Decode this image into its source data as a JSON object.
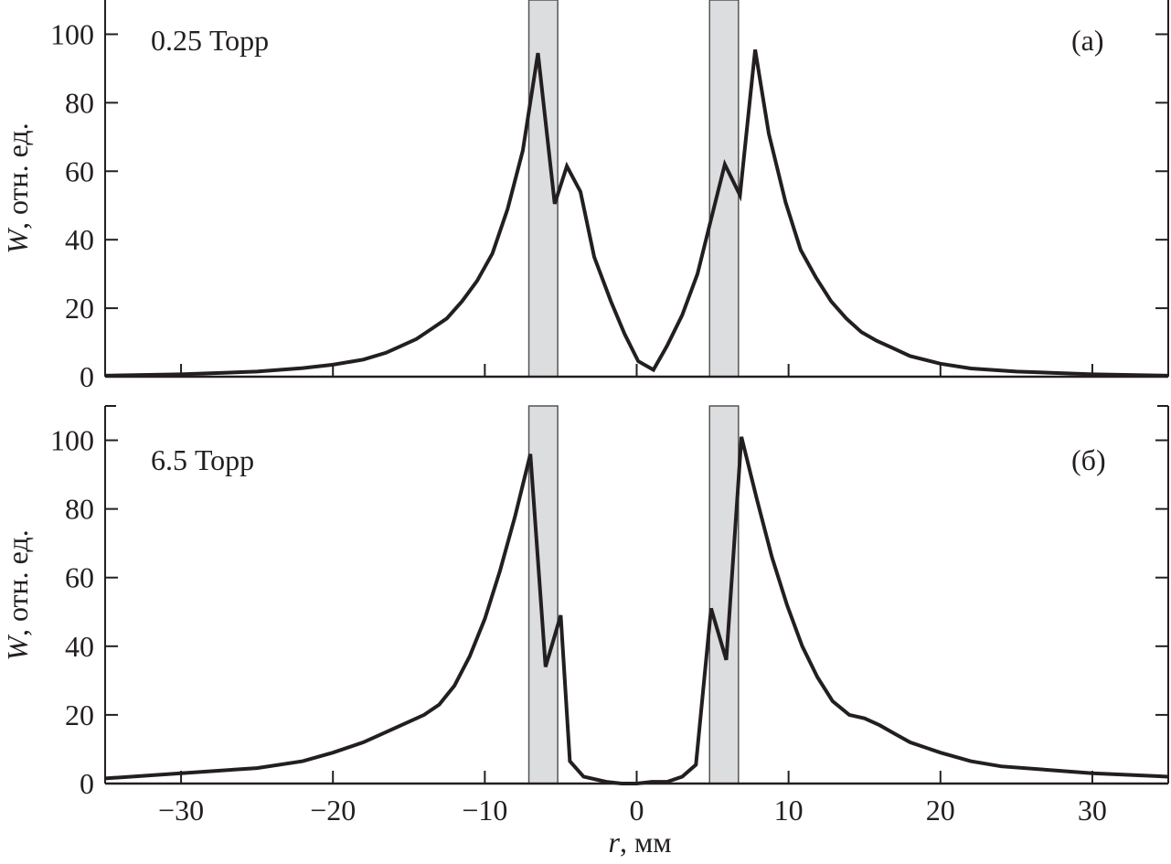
{
  "chart_data": [
    {
      "type": "line",
      "panel_label": "(а)",
      "annotation": "0.25 Торр",
      "ylabel_var": "W",
      "ylabel_rest": ", отн. ед.",
      "xlabel": "",
      "xlim": [
        -35,
        35
      ],
      "ylim": [
        0,
        110
      ],
      "xticks": [
        -30,
        -20,
        -10,
        0,
        10,
        20,
        30
      ],
      "yticks": [
        0,
        20,
        40,
        60,
        80,
        100
      ],
      "shaded_bands": [
        [
          -7.1,
          -5.2
        ],
        [
          4.8,
          6.7
        ]
      ],
      "line_color": "#231f20",
      "band_color": "#dcdddf",
      "x": [
        -35,
        -30,
        -25,
        -22,
        -20,
        -18,
        -16.5,
        -15.5,
        -14.5,
        -13.5,
        -12.5,
        -11.5,
        -10.5,
        -9.5,
        -8.5,
        -7.5,
        -6.5,
        -5.4,
        -4.6,
        -3.7,
        -2.8,
        -1.7,
        -0.8,
        0.1,
        1.1,
        2.0,
        3.0,
        4.0,
        4.9,
        5.8,
        6.8,
        7.8,
        8.7,
        9.8,
        10.8,
        11.8,
        12.8,
        13.8,
        14.8,
        15.8,
        16.8,
        18,
        20,
        22,
        25,
        30,
        35
      ],
      "y": [
        0.3,
        0.7,
        1.5,
        2.5,
        3.5,
        5,
        7,
        9,
        11,
        14,
        17,
        22,
        28,
        36,
        49,
        66,
        94.5,
        50.5,
        61.5,
        54,
        35,
        22,
        12.5,
        4.5,
        2,
        9,
        18,
        30,
        46,
        62,
        53,
        95.5,
        71,
        51,
        37,
        29,
        22,
        17,
        13,
        10.5,
        8.5,
        6,
        3.8,
        2.4,
        1.5,
        0.7,
        0.3
      ]
    },
    {
      "type": "line",
      "panel_label": "(б)",
      "annotation": "6.5 Торр",
      "ylabel_var": "W",
      "ylabel_rest": ", отн. ед.",
      "xlabel_var": "r",
      "xlabel_rest": ", мм",
      "xlim": [
        -35,
        35
      ],
      "ylim": [
        0,
        110
      ],
      "xticks": [
        -30,
        -20,
        -10,
        0,
        10,
        20,
        30
      ],
      "xtick_labels": [
        "−30",
        "−20",
        "−10",
        "0",
        "10",
        "20",
        "30"
      ],
      "yticks": [
        0,
        20,
        40,
        60,
        80,
        100
      ],
      "shaded_bands": [
        [
          -7.1,
          -5.2
        ],
        [
          4.8,
          6.7
        ]
      ],
      "line_color": "#231f20",
      "band_color": "#dcdddf",
      "x": [
        -35,
        -30,
        -25,
        -22,
        -20,
        -18,
        -17,
        -16,
        -15,
        -14,
        -13,
        -12,
        -11,
        -10,
        -9,
        -8,
        -7,
        -6,
        -5,
        -4.4,
        -3.5,
        -2,
        -1,
        0,
        1,
        2,
        3,
        3.9,
        4.9,
        5.9,
        6.9,
        7.9,
        8.9,
        9.9,
        10.9,
        11.9,
        12.9,
        14,
        15,
        16,
        17,
        18,
        20,
        22,
        24,
        27,
        30,
        35
      ],
      "y": [
        1.5,
        3,
        4.5,
        6.5,
        9,
        12,
        14,
        16,
        18,
        20,
        23,
        28.5,
        37,
        48,
        62,
        78,
        96,
        34,
        49,
        6.5,
        2,
        0.5,
        0,
        0,
        0.5,
        0.5,
        2,
        5.5,
        51,
        36,
        101,
        83,
        66,
        52,
        40,
        31,
        24,
        20,
        19,
        17,
        14.5,
        12,
        9,
        6.5,
        5,
        4,
        3,
        2
      ]
    }
  ]
}
